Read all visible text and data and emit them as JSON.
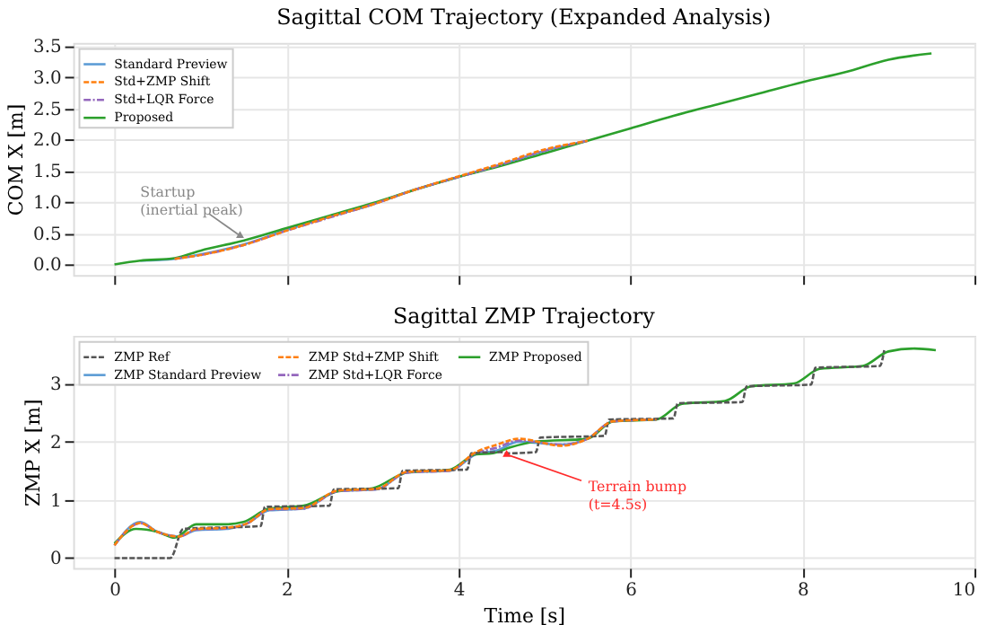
{
  "chart_data": [
    {
      "type": "line",
      "title": "Sagittal COM Trajectory (Expanded Analysis)",
      "ylabel": "COM X [m]",
      "xlim": [
        -0.48,
        10
      ],
      "xticks": [
        {
          "value": 0,
          "label": null
        },
        {
          "value": 2,
          "label": null
        },
        {
          "value": 4,
          "label": null
        },
        {
          "value": 6,
          "label": null
        },
        {
          "value": 8,
          "label": null
        },
        {
          "value": 10,
          "label": null
        }
      ],
      "ylim": [
        -0.17,
        3.55
      ],
      "yticks": [
        {
          "value": 0,
          "label": "0.0"
        },
        0.5,
        {
          "value": 1,
          "label": "1.0"
        },
        1.5,
        {
          "value": 2,
          "label": "2.0"
        },
        2.5,
        {
          "value": 3,
          "label": "3.0"
        },
        3.5
      ],
      "tick_labels": "y",
      "grid": true,
      "legend": "top left",
      "series": [
        {
          "name": "Standard Preview",
          "color": "#5b9bd5",
          "line_style": "solid",
          "x": [
            0.3,
            0.7,
            1,
            1.5,
            2,
            2.5,
            3,
            3.5,
            4,
            4.5,
            5,
            5.5
          ],
          "values": [
            0.06,
            0.09,
            0.16,
            0.32,
            0.55,
            0.76,
            0.96,
            1.2,
            1.4,
            1.6,
            1.82,
            1.98
          ]
        },
        {
          "name": "Std+ZMP Shift",
          "color": "#ff7f0e",
          "line_style": "dashed",
          "x": [
            0.7,
            1,
            1.5,
            2,
            2.5,
            3,
            3.5,
            4,
            4.5,
            5,
            5.5
          ],
          "values": [
            0.09,
            0.15,
            0.31,
            0.54,
            0.76,
            0.96,
            1.2,
            1.41,
            1.62,
            1.84,
            1.98
          ]
        },
        {
          "name": "Std+LQR Force",
          "color": "#9467bd",
          "line_style": "dashdot",
          "x": [
            0.7,
            1,
            1.5,
            2,
            2.5,
            3,
            3.5,
            4,
            4.5,
            5,
            5.5
          ],
          "values": [
            0.09,
            0.15,
            0.31,
            0.54,
            0.75,
            0.96,
            1.2,
            1.4,
            1.6,
            1.82,
            1.98
          ]
        },
        {
          "name": "Proposed",
          "color": "#2ca02c",
          "line_style": "solid",
          "x": [
            0,
            0.3,
            0.7,
            1,
            1.5,
            2,
            2.5,
            3,
            3.5,
            4,
            4.5,
            5,
            5.5,
            6,
            6.5,
            7,
            7.5,
            8,
            8.5,
            9,
            9.5
          ],
          "values": [
            0,
            0.06,
            0.1,
            0.22,
            0.38,
            0.58,
            0.78,
            0.98,
            1.2,
            1.4,
            1.58,
            1.78,
            1.98,
            2.18,
            2.38,
            2.56,
            2.74,
            2.92,
            3.08,
            3.28,
            3.38
          ]
        }
      ],
      "annotations": [
        {
          "text": "Startup\n(inertial peak)",
          "x": 1.46,
          "y": 0.46
        }
      ]
    },
    {
      "type": "line",
      "title": "Sagittal ZMP Trajectory",
      "xlabel": "Time [s]",
      "ylabel": "ZMP X [m]",
      "xlim": [
        -0.48,
        10
      ],
      "xticks": [
        0,
        2,
        4,
        6,
        8,
        10
      ],
      "ylim": [
        -0.17,
        3.82
      ],
      "yticks": [
        0,
        1,
        2,
        3
      ],
      "grid": true,
      "legend": "top left",
      "series": [
        {
          "name": "ZMP Ref",
          "color": "#555555",
          "line_style": "dashed",
          "x": [
            0,
            0.65,
            0.8,
            1.7,
            1.75,
            2.5,
            2.55,
            3.3,
            3.35,
            4.1,
            4.15,
            4.5,
            4.55,
            4.9,
            4.95,
            5.7,
            5.75,
            6.5,
            6.55,
            7.3,
            7.35,
            8.1,
            8.15,
            8.9,
            8.95
          ],
          "values": [
            0,
            0,
            0.5,
            0.55,
            0.88,
            0.9,
            1.18,
            1.2,
            1.5,
            1.52,
            1.8,
            1.82,
            1.8,
            1.82,
            2.07,
            2.1,
            2.38,
            2.4,
            2.66,
            2.68,
            2.95,
            2.98,
            3.27,
            3.3,
            3.57
          ]
        },
        {
          "name": "ZMP Standard Preview",
          "color": "#5b9bd5",
          "line_style": "solid",
          "x": [
            0,
            0.3,
            0.5,
            0.75,
            0.95,
            1.3,
            1.55,
            1.8,
            2.2,
            2.6,
            3.05,
            3.4,
            3.9,
            4.2,
            4.45,
            4.7,
            5.2,
            5.5,
            5.8,
            6.3
          ],
          "values": [
            0.22,
            0.62,
            0.45,
            0.37,
            0.48,
            0.5,
            0.6,
            0.82,
            0.85,
            1.15,
            1.18,
            1.47,
            1.5,
            1.78,
            1.85,
            2.0,
            1.95,
            2.05,
            2.35,
            2.38
          ]
        },
        {
          "name": "ZMP Std+ZMP Shift",
          "color": "#ff7f0e",
          "line_style": "dashed",
          "x": [
            0,
            0.3,
            0.5,
            0.75,
            0.95,
            1.3,
            1.55,
            1.8,
            2.2,
            2.6,
            3.05,
            3.4,
            3.9,
            4.2,
            4.45,
            4.7,
            5.2,
            5.5,
            5.8,
            6.3
          ],
          "values": [
            0.22,
            0.6,
            0.45,
            0.37,
            0.5,
            0.52,
            0.6,
            0.84,
            0.86,
            1.16,
            1.19,
            1.48,
            1.51,
            1.82,
            1.95,
            2.05,
            1.93,
            2.05,
            2.35,
            2.38
          ]
        },
        {
          "name": "ZMP Std+LQR Force",
          "color": "#9467bd",
          "line_style": "dashdot",
          "x": [
            0,
            0.3,
            0.5,
            0.75,
            0.95,
            1.3,
            1.55,
            1.8,
            2.2,
            2.6,
            3.05,
            3.4,
            3.9,
            4.2,
            4.45,
            4.7,
            5.2,
            5.5,
            5.8,
            6.3
          ],
          "values": [
            0.22,
            0.6,
            0.45,
            0.37,
            0.49,
            0.51,
            0.6,
            0.83,
            0.85,
            1.15,
            1.18,
            1.47,
            1.5,
            1.8,
            1.9,
            2.02,
            1.95,
            2.05,
            2.35,
            2.38
          ]
        },
        {
          "name": "ZMP Proposed",
          "color": "#2ca02c",
          "line_style": "solid",
          "x": [
            0,
            0.25,
            0.5,
            0.7,
            0.95,
            1.3,
            1.5,
            1.8,
            2.2,
            2.6,
            3.0,
            3.4,
            3.9,
            4.2,
            4.4,
            4.6,
            4.9,
            5.5,
            5.8,
            6.3,
            6.6,
            7.1,
            7.4,
            7.9,
            8.2,
            8.7,
            9.0,
            9.3,
            9.55
          ],
          "values": [
            0.25,
            0.5,
            0.45,
            0.35,
            0.58,
            0.58,
            0.62,
            0.85,
            0.9,
            1.15,
            1.2,
            1.47,
            1.52,
            1.78,
            1.8,
            1.9,
            2.0,
            2.05,
            2.35,
            2.38,
            2.65,
            2.7,
            2.95,
            3.0,
            3.25,
            3.3,
            3.55,
            3.6,
            3.57
          ]
        }
      ],
      "annotations": [
        {
          "text": "Terrain bump\n(t=4.5s)",
          "x": 4.56,
          "y": 1.78
        }
      ]
    }
  ]
}
